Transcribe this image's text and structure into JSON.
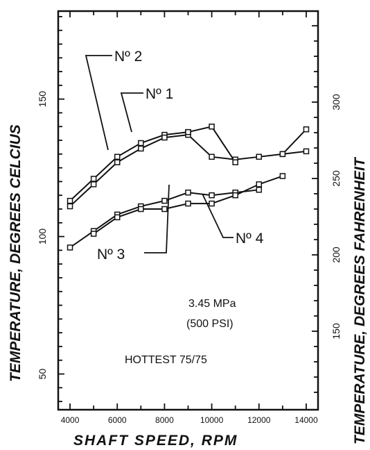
{
  "chart_data": {
    "type": "line",
    "xlabel": "SHAFT SPEED, RPM",
    "ylabel": "TEMPERATURE, DEGREES CELCIUS",
    "ylabel_right": "TEMPERATURE, DEGREES FAHRENHEIT",
    "xlim": [
      3500,
      14500
    ],
    "ylim": [
      37,
      182
    ],
    "x_ticks": [
      4000,
      6000,
      8000,
      10000,
      12000,
      14000
    ],
    "x_tick_labels": [
      "4000",
      "6000",
      "8000",
      "10000",
      "12000",
      "14000"
    ],
    "y_ticks": [
      50,
      100,
      150
    ],
    "y_tick_labels": [
      "50",
      "100",
      "150"
    ],
    "y_right_ticks_f": [
      150,
      200,
      250,
      300
    ],
    "y_right_tick_labels": [
      "150",
      "200",
      "250",
      "300"
    ],
    "grid": false,
    "series": [
      {
        "name": "Nº 2",
        "x": [
          4000,
          5000,
          6000,
          7000,
          8000,
          9000
        ],
        "y": [
          113,
          121,
          129,
          134,
          137,
          138
        ]
      },
      {
        "name": "Nº 1",
        "x": [
          4000,
          5000,
          6000,
          7000,
          8000,
          9000,
          10000,
          11000,
          12000,
          13000,
          14000
        ],
        "y": [
          111,
          119,
          127,
          132,
          136,
          137,
          129,
          128,
          129,
          130,
          131
        ]
      },
      {
        "name": "Nº 3",
        "x": [
          4000,
          5000,
          6000,
          7000,
          8000,
          9000,
          10000,
          11000,
          12000
        ],
        "y": [
          96,
          102,
          108,
          111,
          113,
          116,
          115,
          116,
          117
        ]
      },
      {
        "name": "Nº 4",
        "x": [
          5000,
          6000,
          7000,
          8000,
          9000,
          10000,
          11000,
          12000,
          13000
        ],
        "y": [
          101,
          107,
          110,
          110,
          112,
          112,
          115,
          119,
          122
        ]
      }
    ],
    "extra_segments": [
      {
        "x": [
          9000,
          10000,
          11000
        ],
        "y": [
          138,
          140,
          127
        ]
      },
      {
        "x": [
          13000,
          14000
        ],
        "y": [
          130,
          139
        ]
      }
    ],
    "annotations": [
      {
        "text": "Nº 2"
      },
      {
        "text": "Nº 1"
      },
      {
        "text": "Nº 3"
      },
      {
        "text": "Nº 4"
      },
      {
        "text": "3.45 MPa"
      },
      {
        "text": "(500 PSI)"
      },
      {
        "text": "HOTTEST 75/75"
      }
    ]
  }
}
